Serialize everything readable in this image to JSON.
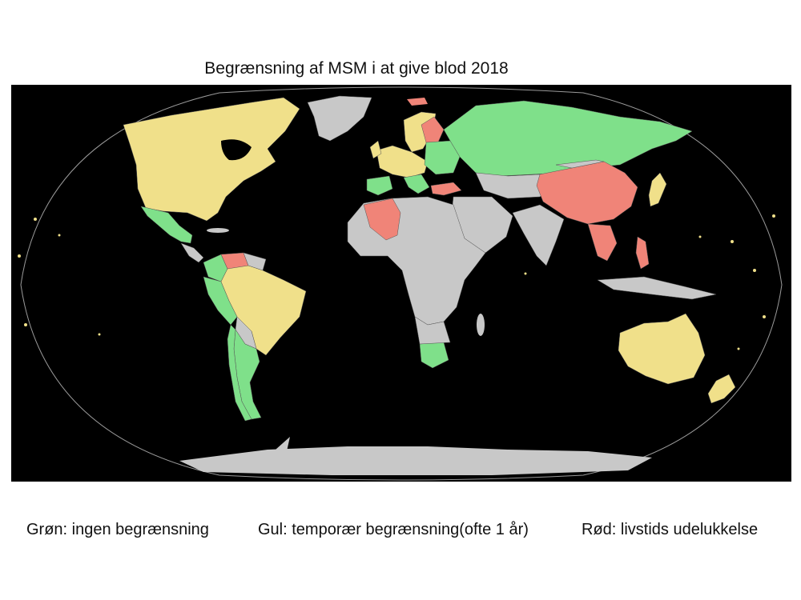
{
  "title": "Begrænsning af MSM i at give blod 2018",
  "legend": {
    "green": "Grøn: ingen begrænsning",
    "yellow": "Gul: temporær begrænsning(ofte 1 år)",
    "red": "Rød: livstids udelukkelse"
  },
  "colors": {
    "no_restriction": "#7fe08a",
    "temporary": "#f0e08a",
    "lifetime": "#f08478",
    "no_data": "#c8c8c8",
    "ocean": "#000000"
  },
  "icons": {
    "map": "world-map-robinson-projection"
  }
}
